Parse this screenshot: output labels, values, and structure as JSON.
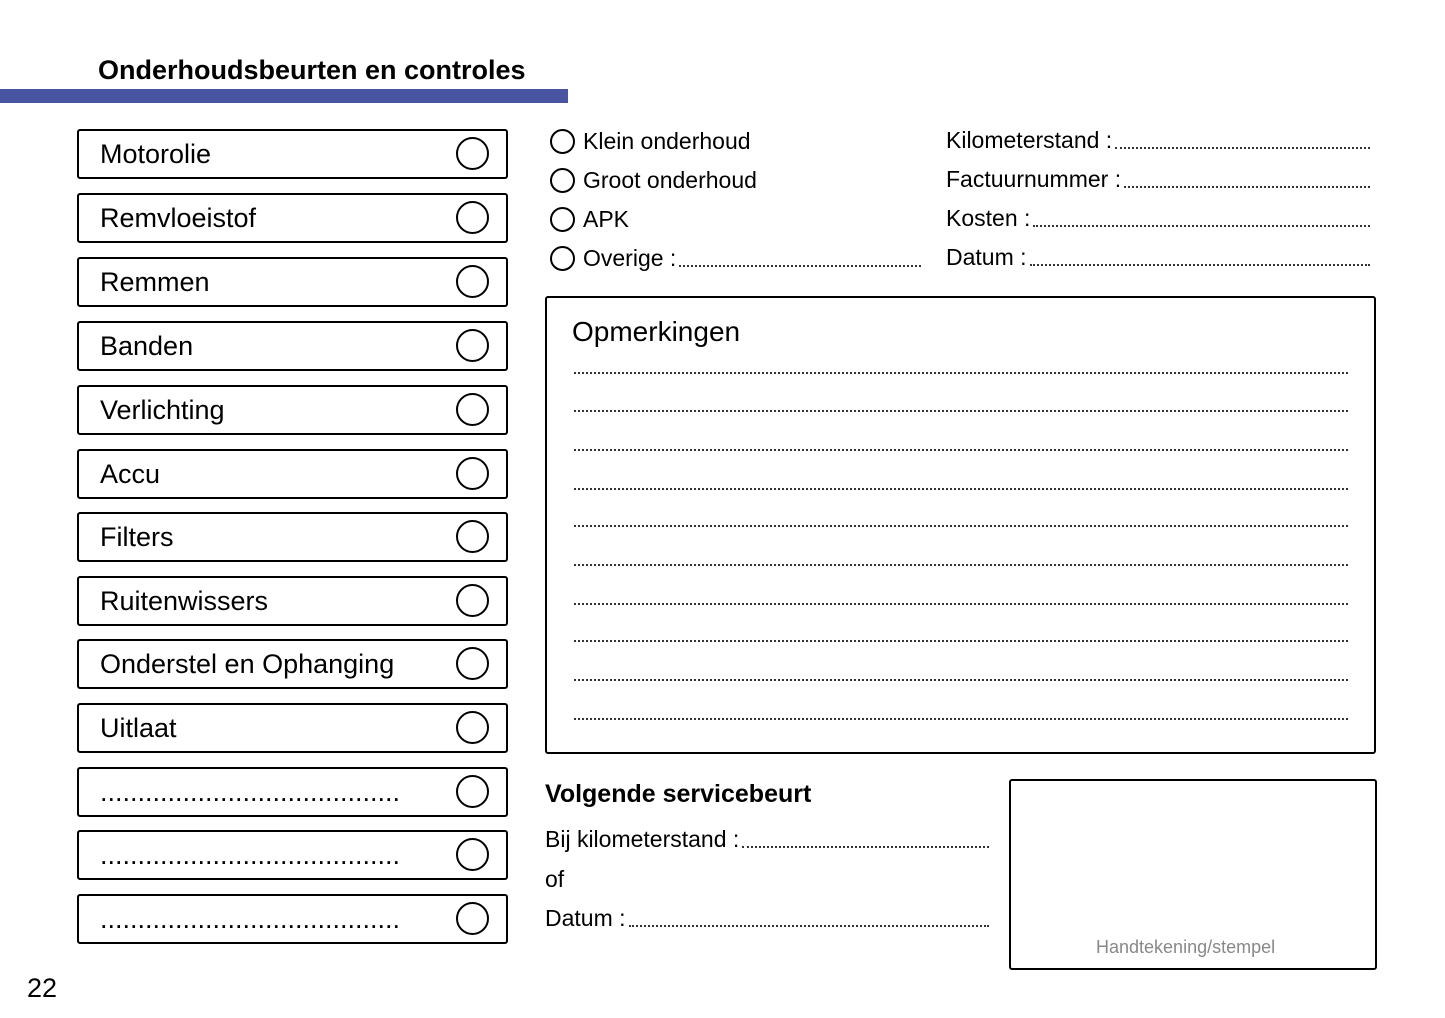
{
  "title": "Onderhoudsbeurten en controles",
  "accent_color": "#4a55a2",
  "checklist": [
    "Motorolie",
    "Remvloeistof",
    "Remmen",
    "Banden",
    "Verlichting",
    "Accu",
    "Filters",
    "Ruitenwissers",
    "Onderstel en Ophanging",
    "Uitlaat",
    "........................................",
    "........................................",
    "........................................"
  ],
  "service_types": [
    "Klein onderhoud",
    "Groot onderhoud",
    "APK",
    "Overige :"
  ],
  "fields": [
    "Kilometerstand :",
    "Factuurnummer :",
    "Kosten :",
    "Datum :"
  ],
  "remarks": {
    "title": "Opmerkingen",
    "line_count": 10
  },
  "next_service": {
    "title": "Volgende servicebeurt",
    "km_label": "Bij kilometerstand :",
    "or_label": "of",
    "date_label": "Datum :"
  },
  "signature_label": "Handtekening/stempel",
  "page_number": "22"
}
